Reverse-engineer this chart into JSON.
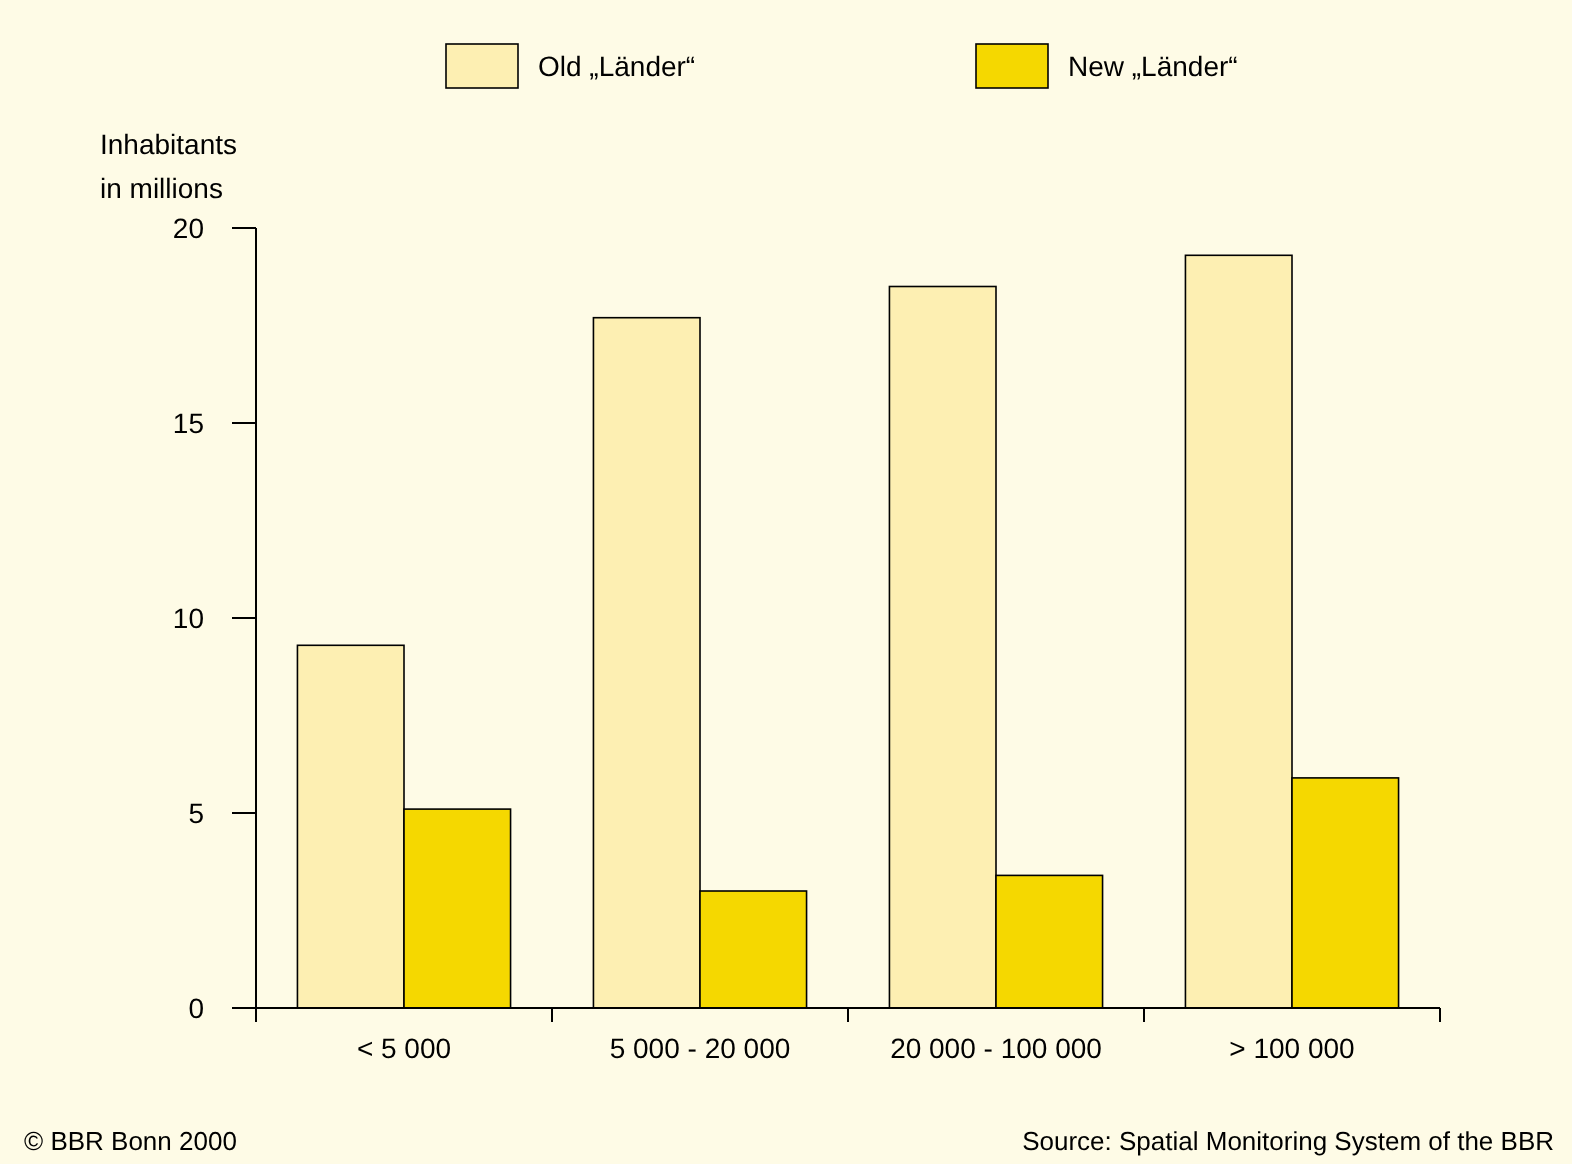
{
  "chart_data": {
    "type": "bar",
    "ylabel": "Inhabitants in millions",
    "categories": [
      "< 5 000",
      "5 000 - 20 000",
      "20 000 - 100 000",
      "> 100 000"
    ],
    "series": [
      {
        "name": "Old „Länder“",
        "color": "#fdefb2",
        "values": [
          9.3,
          17.7,
          18.5,
          19.3
        ]
      },
      {
        "name": "New „Länder“",
        "color": "#f5d800",
        "values": [
          5.1,
          3.0,
          3.4,
          5.9
        ]
      }
    ],
    "ylim": [
      0,
      20
    ],
    "yticks": [
      0,
      5,
      10,
      15,
      20
    ],
    "grid": false,
    "legend": "top",
    "annotations": [
      "© BBR Bonn 2000",
      "Source: Spatial Monitoring System of the BBR"
    ]
  }
}
